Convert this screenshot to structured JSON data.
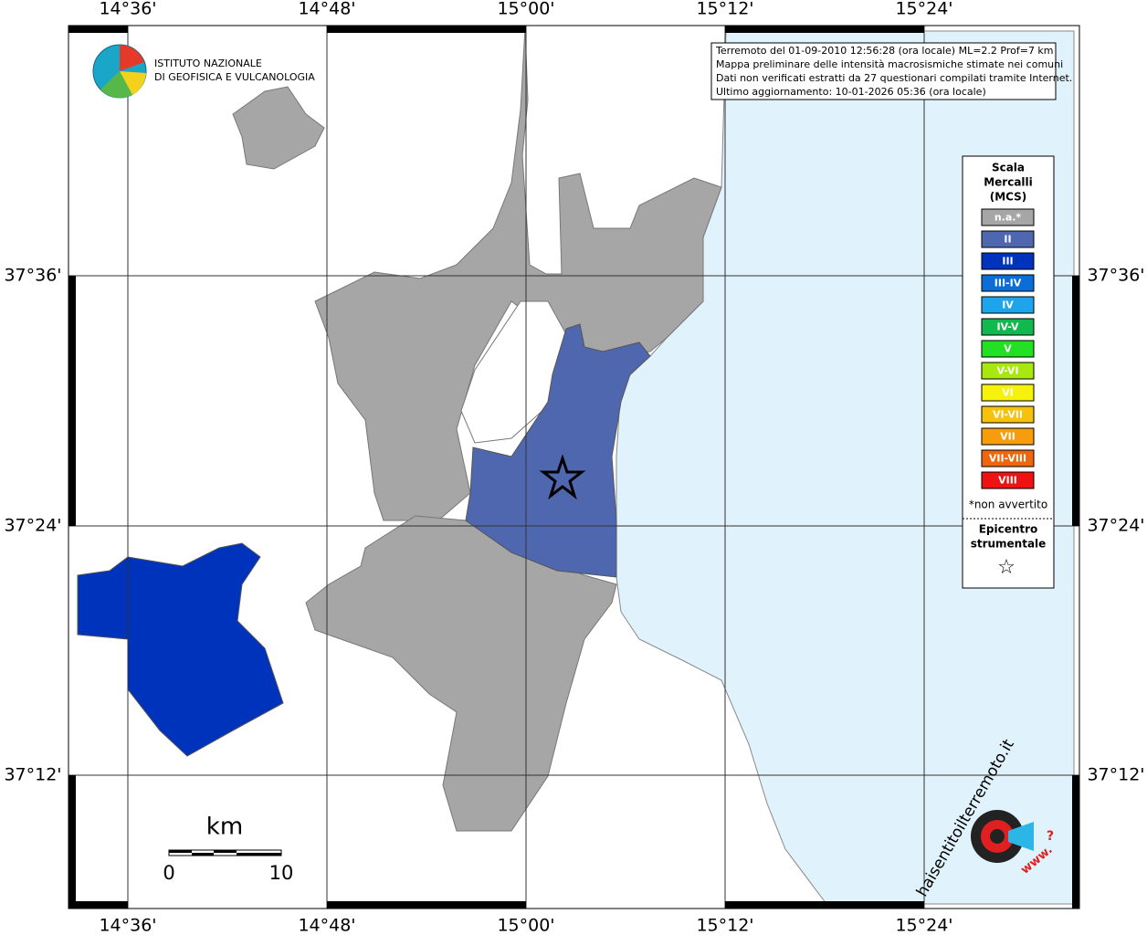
{
  "map": {
    "lon_labels": [
      "14°36'",
      "14°48'",
      "15°00'",
      "15°12'",
      "15°24'"
    ],
    "lat_labels": [
      "37°36'",
      "37°24'",
      "37°12'"
    ],
    "institute": [
      "ISTITUTO NAZIONALE",
      "DI GEOFISICA E VULCANOLOGIA"
    ],
    "info": [
      "Terremoto del 01-09-2010 12:56:28 (ora locale) ML=2.2 Prof=7 km",
      "Mappa preliminare delle intensità macrosismiche stimate nei comuni",
      "Dati non verificati estratti da 27 questionari compilati tramite Internet.",
      "Ultimo aggiornamento: 10-01-2026 05:36 (ora locale)"
    ],
    "legend": {
      "title": [
        "Scala",
        "Mercalli",
        "(MCS)"
      ],
      "items": [
        {
          "label": "n.a.*",
          "color": "#a6a6a6"
        },
        {
          "label": "II",
          "color": "#4f67af"
        },
        {
          "label": "III",
          "color": "#0033bb"
        },
        {
          "label": "III-IV",
          "color": "#0a6ed6"
        },
        {
          "label": "IV",
          "color": "#1ea4ea"
        },
        {
          "label": "IV-V",
          "color": "#11b84e"
        },
        {
          "label": "V",
          "color": "#22e022"
        },
        {
          "label": "V-VI",
          "color": "#a8e80e"
        },
        {
          "label": "VI",
          "color": "#f6f20c"
        },
        {
          "label": "VI-VII",
          "color": "#f6c20c"
        },
        {
          "label": "VII",
          "color": "#f79c0a"
        },
        {
          "label": "VII-VIII",
          "color": "#f0660c"
        },
        {
          "label": "VIII",
          "color": "#ee1212"
        }
      ],
      "note": "*non avvertito",
      "epicenter": [
        "Epicentro",
        "strumentale"
      ],
      "star": "☆"
    },
    "scale": {
      "unit": "km",
      "start": "0",
      "end": "10"
    },
    "logo": {
      "site": "haisentitoilterremoto.it",
      "prefix": "www."
    }
  }
}
